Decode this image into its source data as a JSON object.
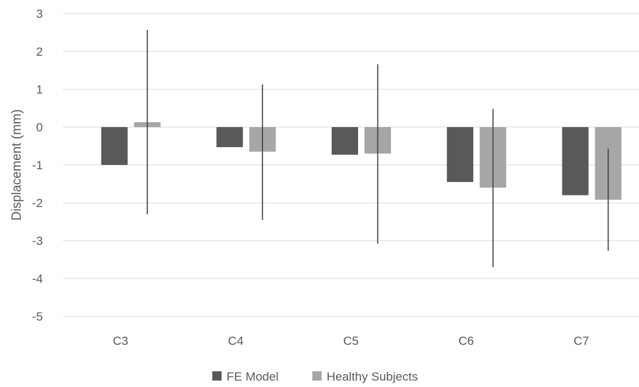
{
  "chart_data": {
    "type": "bar",
    "title": "",
    "xlabel": "",
    "ylabel": "Displacement  (mm)",
    "ylim": [
      -5,
      3
    ],
    "yticks": [
      3,
      2,
      1,
      0,
      -1,
      -2,
      -3,
      -4,
      -5
    ],
    "grid": true,
    "legend_position": "bottom",
    "categories": [
      "C3",
      "C4",
      "C5",
      "C6",
      "C7"
    ],
    "series": [
      {
        "name": "FE Model",
        "color": "#595959",
        "values": [
          -1.0,
          -0.53,
          -0.73,
          -1.45,
          -1.8
        ]
      },
      {
        "name": "Healthy Subjects",
        "color": "#a6a6a6",
        "values": [
          0.13,
          -0.65,
          -0.7,
          -1.6,
          -1.92
        ],
        "error_bars": [
          [
            -2.3,
            2.57
          ],
          [
            -2.45,
            1.13
          ],
          [
            -3.08,
            1.66
          ],
          [
            -3.7,
            0.48
          ],
          [
            -3.27,
            -0.57
          ]
        ]
      }
    ]
  }
}
